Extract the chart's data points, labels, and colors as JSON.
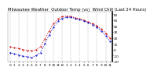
{
  "title": "Milwaukee Weather  Outdoor Temp (vs)  Wind Chill (Last 24 Hours)",
  "x_labels": [
    "0",
    "1",
    "2",
    "3",
    "4",
    "5",
    "6",
    "7",
    "8",
    "9",
    "10",
    "11",
    "12",
    "1",
    "2",
    "3",
    "4",
    "5",
    "6",
    "7",
    "8",
    "9",
    "10",
    "11"
  ],
  "hours": [
    0,
    1,
    2,
    3,
    4,
    5,
    6,
    7,
    8,
    9,
    10,
    11,
    12,
    13,
    14,
    15,
    16,
    17,
    18,
    19,
    20,
    21,
    22,
    23
  ],
  "outdoor_temp": [
    5,
    3,
    2,
    0,
    -1,
    -2,
    0,
    5,
    18,
    32,
    44,
    52,
    56,
    57,
    56,
    54,
    52,
    50,
    47,
    44,
    40,
    35,
    28,
    20
  ],
  "wind_chill": [
    -5,
    -7,
    -9,
    -11,
    -12,
    -13,
    -10,
    -5,
    10,
    25,
    38,
    48,
    53,
    55,
    55,
    53,
    51,
    49,
    46,
    42,
    38,
    32,
    24,
    14
  ],
  "temp_color": "#cc0000",
  "wc_color": "#0000cc",
  "ylim": [
    -20,
    65
  ],
  "yticks": [
    -20,
    -10,
    0,
    10,
    20,
    30,
    40,
    50,
    60
  ],
  "ytick_labels": [
    "-20",
    "-10",
    "0",
    "10",
    "20",
    "30",
    "40",
    "50",
    "60"
  ],
  "background_color": "#ffffff",
  "plot_bg_color": "#ffffff",
  "grid_color": "#888888",
  "title_fontsize": 3.8,
  "tick_fontsize": 3.0,
  "line_width": 0.7,
  "marker_size": 1.0
}
